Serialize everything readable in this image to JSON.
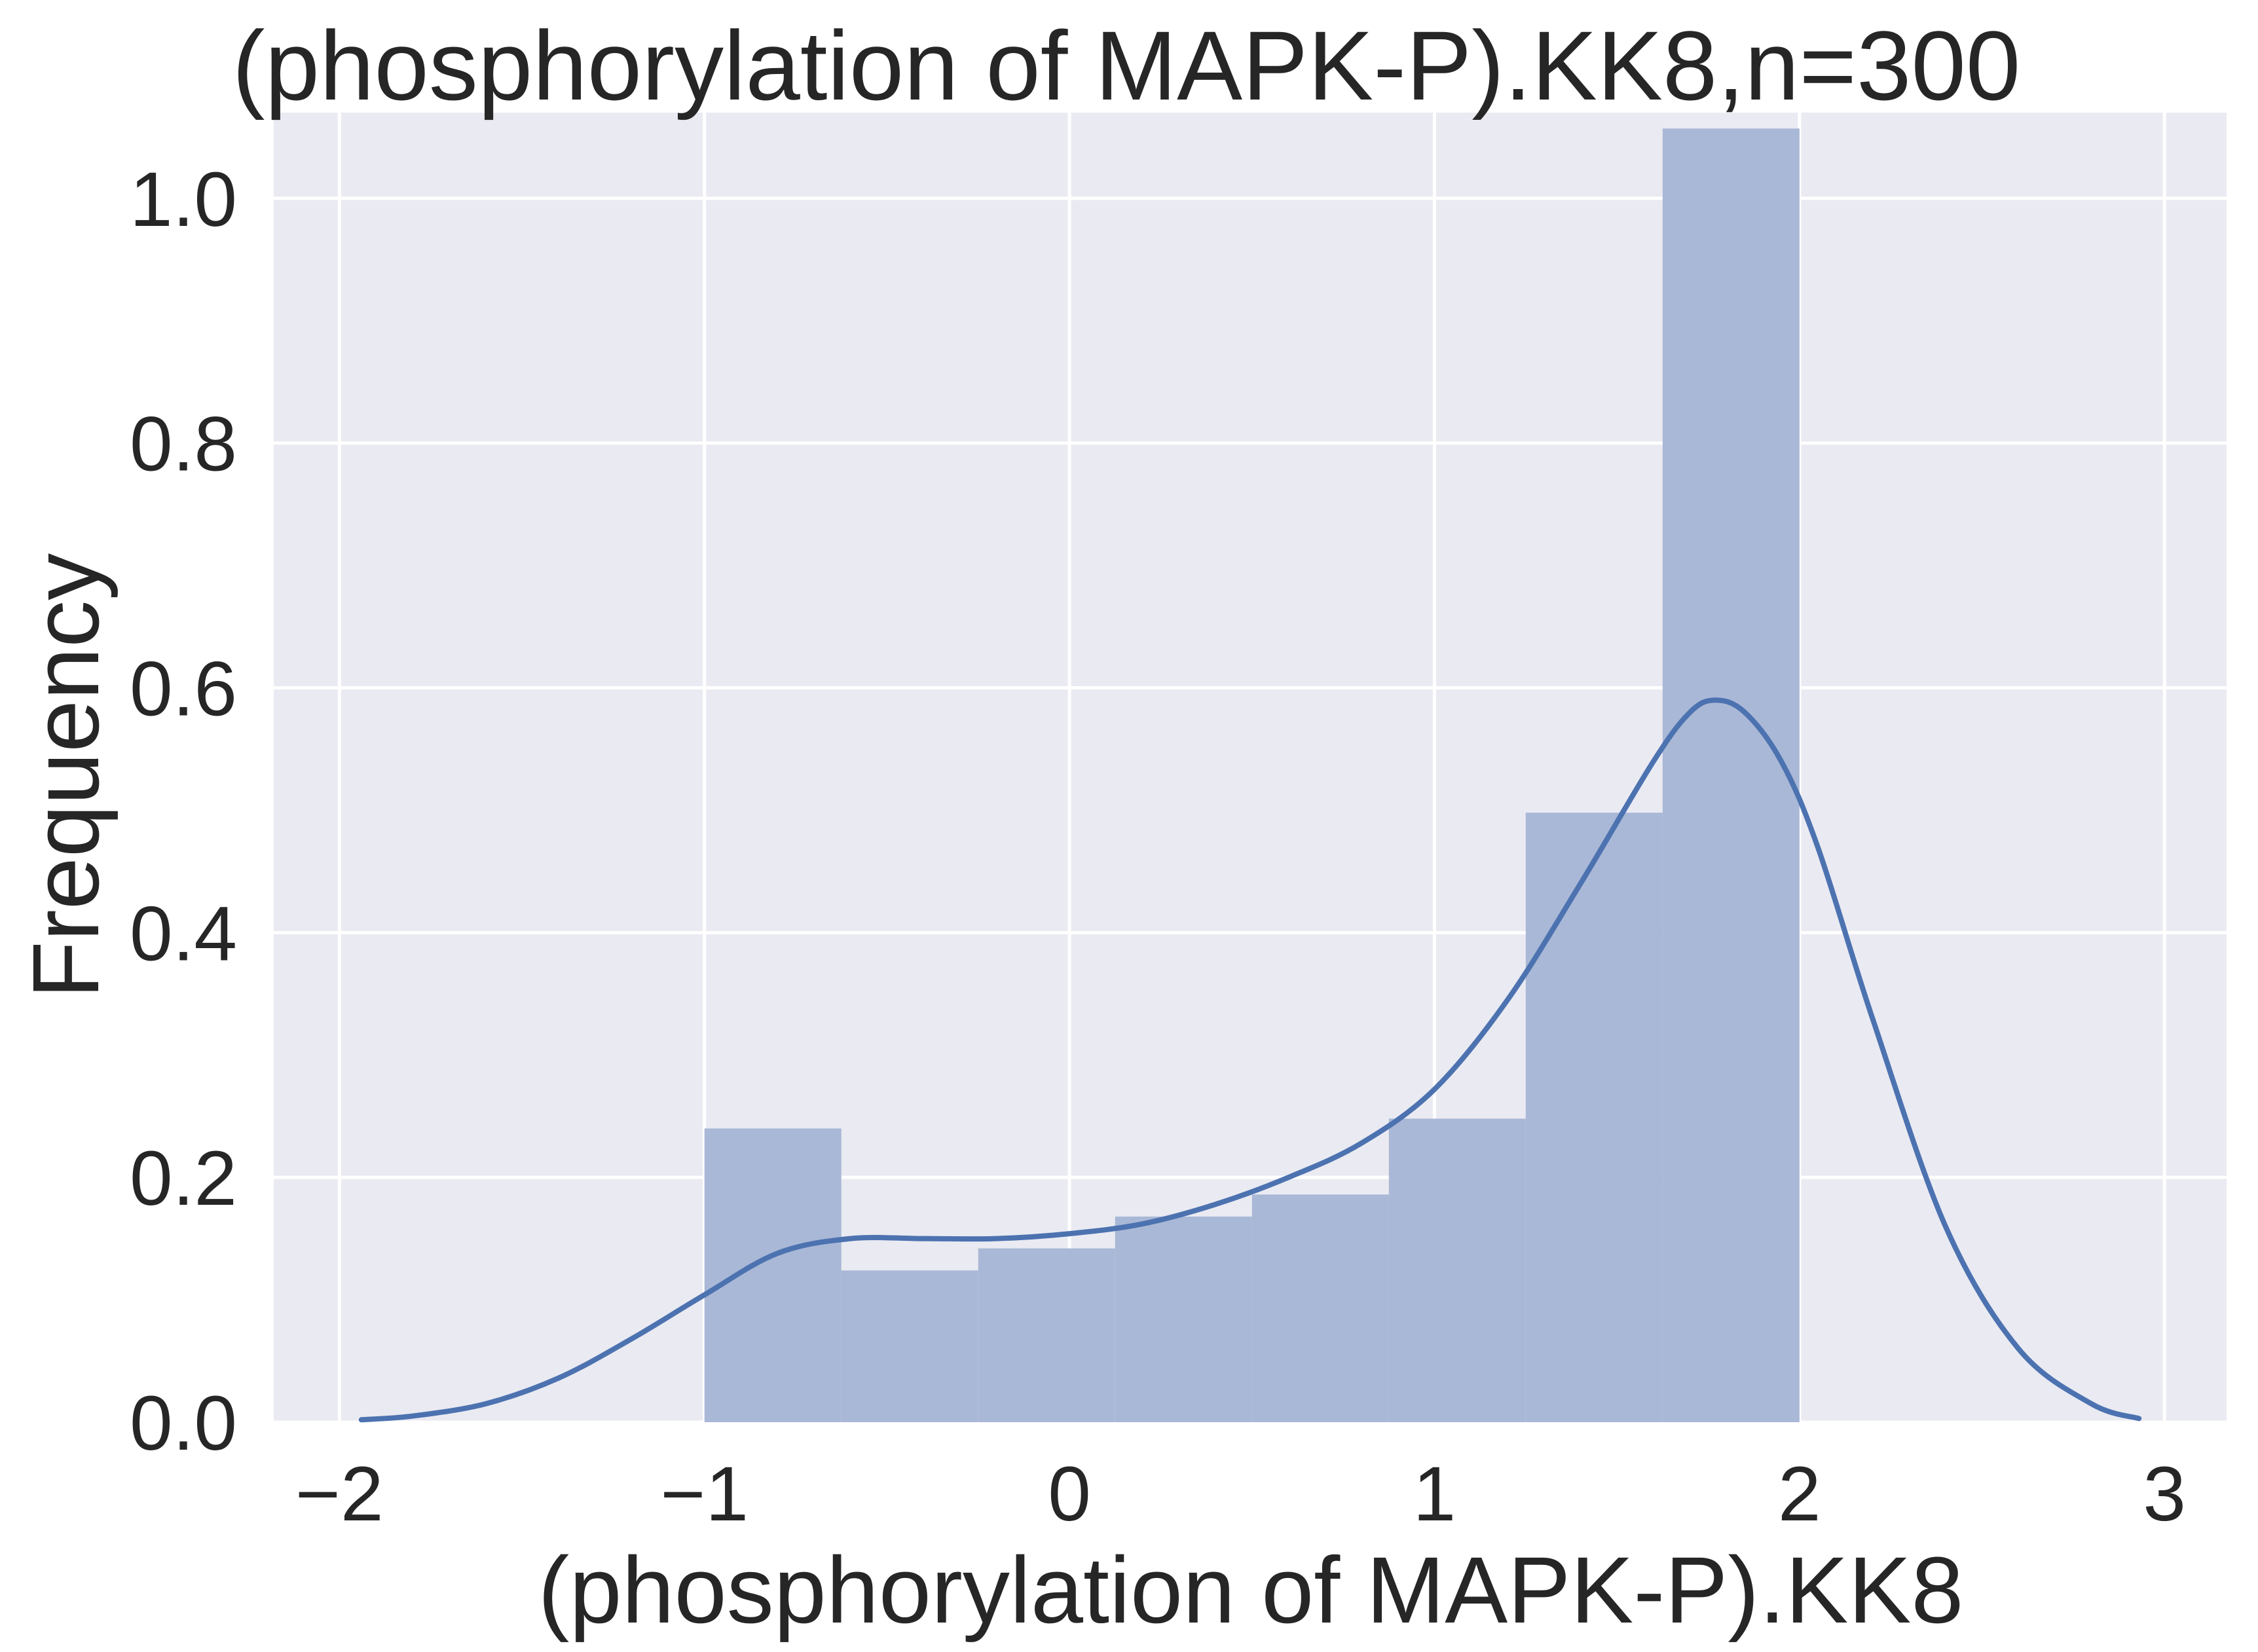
{
  "chart_data": {
    "type": "bar",
    "title": "(phosphorylation of MAPK-P).KK8,n=300",
    "xlabel": "(phosphorylation of MAPK-P).KK8",
    "ylabel": "Frequency",
    "xlim": [
      -2.18,
      3.17
    ],
    "ylim": [
      0,
      1.07
    ],
    "grid": true,
    "x_ticks": [
      -2,
      -1,
      0,
      1,
      2,
      3
    ],
    "x_tick_labels": [
      "−2",
      "−1",
      "0",
      "1",
      "2",
      "3"
    ],
    "y_ticks": [
      0.0,
      0.2,
      0.4,
      0.6,
      0.8,
      1.0
    ],
    "y_tick_labels": [
      "0.0",
      "0.2",
      "0.4",
      "0.6",
      "0.8",
      "1.0"
    ],
    "bins": [
      {
        "x0": -1.0,
        "x1": -0.625,
        "value": 0.24
      },
      {
        "x0": -0.625,
        "x1": -0.25,
        "value": 0.124
      },
      {
        "x0": -0.25,
        "x1": 0.125,
        "value": 0.142
      },
      {
        "x0": 0.125,
        "x1": 0.5,
        "value": 0.168
      },
      {
        "x0": 0.5,
        "x1": 0.875,
        "value": 0.186
      },
      {
        "x0": 0.875,
        "x1": 1.25,
        "value": 0.248
      },
      {
        "x0": 1.25,
        "x1": 1.625,
        "value": 0.498
      },
      {
        "x0": 1.625,
        "x1": 2.0,
        "value": 1.057
      }
    ],
    "kde": {
      "x": [
        -1.94,
        -1.8,
        -1.6,
        -1.4,
        -1.2,
        -1.0,
        -0.8,
        -0.6,
        -0.4,
        -0.2,
        0.0,
        0.2,
        0.4,
        0.6,
        0.8,
        1.0,
        1.2,
        1.4,
        1.6,
        1.7,
        1.77,
        1.85,
        1.95,
        2.05,
        2.2,
        2.4,
        2.6,
        2.8,
        2.93
      ],
      "y": [
        0.002,
        0.005,
        0.015,
        0.036,
        0.068,
        0.104,
        0.138,
        0.15,
        0.15,
        0.15,
        0.154,
        0.162,
        0.178,
        0.2,
        0.228,
        0.272,
        0.345,
        0.44,
        0.54,
        0.58,
        0.59,
        0.58,
        0.54,
        0.47,
        0.33,
        0.16,
        0.06,
        0.015,
        0.003
      ]
    },
    "colors": {
      "background": "#eaeaf2",
      "grid": "#ffffff",
      "bar": "#a9b8d6",
      "bar_opacity": 1,
      "line": "#4c72b0"
    }
  }
}
